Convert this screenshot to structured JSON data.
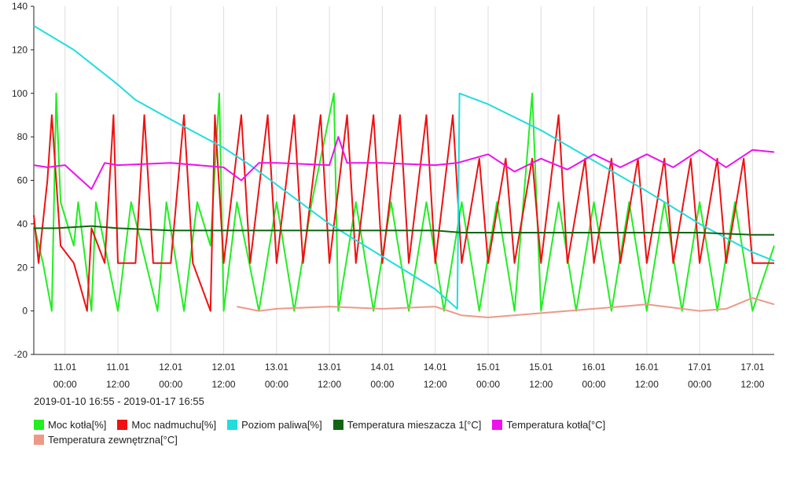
{
  "date_range": "2019-01-10 16:55 - 2019-01-17 16:55",
  "chart_data": {
    "type": "line",
    "xlabel": "",
    "ylabel": "",
    "ylim": [
      -20,
      140
    ],
    "yticks": [
      -20,
      0,
      20,
      40,
      60,
      80,
      100,
      120,
      140
    ],
    "x_range": [
      "2019-01-10 16:55",
      "2019-01-17 16:55"
    ],
    "grid": "vertical",
    "xticks": [
      {
        "x": "2019-01-11 00:00",
        "day": "11.01",
        "time": "00:00"
      },
      {
        "x": "2019-01-11 12:00",
        "day": "11.01",
        "time": "12:00"
      },
      {
        "x": "2019-01-12 00:00",
        "day": "12.01",
        "time": "00:00"
      },
      {
        "x": "2019-01-12 12:00",
        "day": "12.01",
        "time": "12:00"
      },
      {
        "x": "2019-01-13 00:00",
        "day": "13.01",
        "time": "00:00"
      },
      {
        "x": "2019-01-13 12:00",
        "day": "13.01",
        "time": "12:00"
      },
      {
        "x": "2019-01-14 00:00",
        "day": "14.01",
        "time": "00:00"
      },
      {
        "x": "2019-01-14 12:00",
        "day": "14.01",
        "time": "12:00"
      },
      {
        "x": "2019-01-15 00:00",
        "day": "15.01",
        "time": "00:00"
      },
      {
        "x": "2019-01-15 12:00",
        "day": "15.01",
        "time": "12:00"
      },
      {
        "x": "2019-01-16 00:00",
        "day": "16.01",
        "time": "00:00"
      },
      {
        "x": "2019-01-16 12:00",
        "day": "16.01",
        "time": "12:00"
      },
      {
        "x": "2019-01-17 00:00",
        "day": "17.01",
        "time": "00:00"
      },
      {
        "x": "2019-01-17 12:00",
        "day": "17.01",
        "time": "12:00"
      }
    ],
    "legend_position": "bottom-left",
    "series": [
      {
        "name": "Moc kotła[%]",
        "color": "#22ee22",
        "points": [
          [
            "2019-01-10 16:55",
            40
          ],
          [
            "2019-01-10 19:00",
            22
          ],
          [
            "2019-01-10 21:00",
            0
          ],
          [
            "2019-01-10 22:00",
            100
          ],
          [
            "2019-01-10 23:00",
            50
          ],
          [
            "2019-01-11 02:00",
            30
          ],
          [
            "2019-01-11 03:00",
            50
          ],
          [
            "2019-01-11 06:00",
            0
          ],
          [
            "2019-01-11 07:00",
            50
          ],
          [
            "2019-01-11 09:00",
            30
          ],
          [
            "2019-01-11 12:00",
            0
          ],
          [
            "2019-01-11 15:00",
            50
          ],
          [
            "2019-01-11 21:00",
            0
          ],
          [
            "2019-01-11 23:00",
            50
          ],
          [
            "2019-01-12 03:00",
            0
          ],
          [
            "2019-01-12 06:00",
            50
          ],
          [
            "2019-01-12 09:00",
            30
          ],
          [
            "2019-01-12 11:00",
            100
          ],
          [
            "2019-01-12 12:00",
            0
          ],
          [
            "2019-01-12 15:00",
            50
          ],
          [
            "2019-01-12 20:00",
            0
          ],
          [
            "2019-01-13 00:00",
            50
          ],
          [
            "2019-01-13 04:00",
            0
          ],
          [
            "2019-01-13 08:00",
            50
          ],
          [
            "2019-01-13 13:00",
            100
          ],
          [
            "2019-01-13 14:00",
            0
          ],
          [
            "2019-01-13 18:00",
            50
          ],
          [
            "2019-01-13 22:00",
            0
          ],
          [
            "2019-01-14 02:00",
            50
          ],
          [
            "2019-01-14 06:00",
            0
          ],
          [
            "2019-01-14 10:00",
            50
          ],
          [
            "2019-01-14 14:00",
            0
          ],
          [
            "2019-01-14 18:00",
            50
          ],
          [
            "2019-01-14 22:00",
            0
          ],
          [
            "2019-01-15 02:00",
            50
          ],
          [
            "2019-01-15 06:00",
            0
          ],
          [
            "2019-01-15 10:00",
            100
          ],
          [
            "2019-01-15 12:00",
            0
          ],
          [
            "2019-01-15 16:00",
            50
          ],
          [
            "2019-01-15 20:00",
            0
          ],
          [
            "2019-01-16 00:00",
            50
          ],
          [
            "2019-01-16 04:00",
            0
          ],
          [
            "2019-01-16 08:00",
            50
          ],
          [
            "2019-01-16 12:00",
            0
          ],
          [
            "2019-01-16 16:00",
            50
          ],
          [
            "2019-01-16 20:00",
            0
          ],
          [
            "2019-01-17 00:00",
            50
          ],
          [
            "2019-01-17 04:00",
            0
          ],
          [
            "2019-01-17 08:00",
            50
          ],
          [
            "2019-01-17 12:00",
            0
          ],
          [
            "2019-01-17 16:55",
            30
          ]
        ]
      },
      {
        "name": "Moc nadmuchu[%]",
        "color": "#ee1111",
        "points": [
          [
            "2019-01-10 16:55",
            44
          ],
          [
            "2019-01-10 18:00",
            22
          ],
          [
            "2019-01-10 20:00",
            60
          ],
          [
            "2019-01-10 21:00",
            90
          ],
          [
            "2019-01-10 23:00",
            30
          ],
          [
            "2019-01-11 02:00",
            22
          ],
          [
            "2019-01-11 05:00",
            0
          ],
          [
            "2019-01-11 06:00",
            38
          ],
          [
            "2019-01-11 09:00",
            22
          ],
          [
            "2019-01-11 11:00",
            90
          ],
          [
            "2019-01-11 12:00",
            22
          ],
          [
            "2019-01-11 16:00",
            22
          ],
          [
            "2019-01-11 18:00",
            90
          ],
          [
            "2019-01-11 20:00",
            22
          ],
          [
            "2019-01-12 00:00",
            22
          ],
          [
            "2019-01-12 03:00",
            90
          ],
          [
            "2019-01-12 05:00",
            22
          ],
          [
            "2019-01-12 09:00",
            0
          ],
          [
            "2019-01-12 10:00",
            90
          ],
          [
            "2019-01-12 12:00",
            22
          ],
          [
            "2019-01-12 16:00",
            90
          ],
          [
            "2019-01-12 18:00",
            22
          ],
          [
            "2019-01-12 22:00",
            90
          ],
          [
            "2019-01-13 00:00",
            22
          ],
          [
            "2019-01-13 04:00",
            90
          ],
          [
            "2019-01-13 06:00",
            22
          ],
          [
            "2019-01-13 10:00",
            90
          ],
          [
            "2019-01-13 12:00",
            22
          ],
          [
            "2019-01-13 16:00",
            90
          ],
          [
            "2019-01-13 18:00",
            22
          ],
          [
            "2019-01-13 22:00",
            90
          ],
          [
            "2019-01-14 00:00",
            22
          ],
          [
            "2019-01-14 04:00",
            90
          ],
          [
            "2019-01-14 06:00",
            22
          ],
          [
            "2019-01-14 10:00",
            90
          ],
          [
            "2019-01-14 12:00",
            22
          ],
          [
            "2019-01-14 16:00",
            90
          ],
          [
            "2019-01-14 18:00",
            22
          ],
          [
            "2019-01-14 22:00",
            70
          ],
          [
            "2019-01-15 00:00",
            22
          ],
          [
            "2019-01-15 04:00",
            70
          ],
          [
            "2019-01-15 06:00",
            22
          ],
          [
            "2019-01-15 10:00",
            70
          ],
          [
            "2019-01-15 12:00",
            22
          ],
          [
            "2019-01-15 16:00",
            90
          ],
          [
            "2019-01-15 18:00",
            22
          ],
          [
            "2019-01-15 22:00",
            70
          ],
          [
            "2019-01-16 00:00",
            22
          ],
          [
            "2019-01-16 04:00",
            70
          ],
          [
            "2019-01-16 06:00",
            22
          ],
          [
            "2019-01-16 10:00",
            70
          ],
          [
            "2019-01-16 12:00",
            22
          ],
          [
            "2019-01-16 16:00",
            70
          ],
          [
            "2019-01-16 18:00",
            22
          ],
          [
            "2019-01-16 22:00",
            70
          ],
          [
            "2019-01-17 00:00",
            22
          ],
          [
            "2019-01-17 04:00",
            70
          ],
          [
            "2019-01-17 06:00",
            22
          ],
          [
            "2019-01-17 10:00",
            70
          ],
          [
            "2019-01-17 12:00",
            22
          ],
          [
            "2019-01-17 16:55",
            22
          ]
        ]
      },
      {
        "name": "Poziom paliwa[%]",
        "color": "#22dddd",
        "points": [
          [
            "2019-01-10 16:55",
            131
          ],
          [
            "2019-01-11 02:00",
            120
          ],
          [
            "2019-01-11 12:00",
            104
          ],
          [
            "2019-01-11 16:00",
            97
          ],
          [
            "2019-01-12 00:00",
            88
          ],
          [
            "2019-01-12 12:00",
            75
          ],
          [
            "2019-01-12 18:00",
            67
          ],
          [
            "2019-01-13 00:00",
            58
          ],
          [
            "2019-01-13 12:00",
            40
          ],
          [
            "2019-01-14 00:00",
            25
          ],
          [
            "2019-01-14 12:00",
            10
          ],
          [
            "2019-01-14 17:00",
            1
          ],
          [
            "2019-01-14 17:30",
            100
          ],
          [
            "2019-01-15 00:00",
            95
          ],
          [
            "2019-01-15 12:00",
            83
          ],
          [
            "2019-01-16 00:00",
            69
          ],
          [
            "2019-01-16 12:00",
            55
          ],
          [
            "2019-01-17 00:00",
            40
          ],
          [
            "2019-01-17 12:00",
            27
          ],
          [
            "2019-01-17 16:55",
            23
          ]
        ]
      },
      {
        "name": "Temperatura mieszacza 1[°C]",
        "color": "#116611",
        "points": [
          [
            "2019-01-10 16:55",
            38
          ],
          [
            "2019-01-10 22:00",
            38
          ],
          [
            "2019-01-11 06:00",
            39
          ],
          [
            "2019-01-11 12:00",
            38
          ],
          [
            "2019-01-12 00:00",
            37
          ],
          [
            "2019-01-12 12:00",
            37
          ],
          [
            "2019-01-13 00:00",
            37
          ],
          [
            "2019-01-13 12:00",
            37
          ],
          [
            "2019-01-14 00:00",
            37
          ],
          [
            "2019-01-14 12:00",
            37
          ],
          [
            "2019-01-14 18:00",
            36
          ],
          [
            "2019-01-15 00:00",
            36
          ],
          [
            "2019-01-15 12:00",
            36
          ],
          [
            "2019-01-16 00:00",
            36
          ],
          [
            "2019-01-16 12:00",
            36
          ],
          [
            "2019-01-17 00:00",
            36
          ],
          [
            "2019-01-17 12:00",
            35
          ],
          [
            "2019-01-17 16:55",
            35
          ]
        ]
      },
      {
        "name": "Temperatura kotła[°C]",
        "color": "#ee11ee",
        "points": [
          [
            "2019-01-10 16:55",
            67
          ],
          [
            "2019-01-10 20:00",
            66
          ],
          [
            "2019-01-11 00:00",
            67
          ],
          [
            "2019-01-11 06:00",
            56
          ],
          [
            "2019-01-11 09:00",
            68
          ],
          [
            "2019-01-11 12:00",
            67
          ],
          [
            "2019-01-12 00:00",
            68
          ],
          [
            "2019-01-12 12:00",
            66
          ],
          [
            "2019-01-12 16:00",
            60
          ],
          [
            "2019-01-12 20:00",
            68
          ],
          [
            "2019-01-13 00:00",
            68
          ],
          [
            "2019-01-13 12:00",
            67
          ],
          [
            "2019-01-13 14:00",
            80
          ],
          [
            "2019-01-13 16:00",
            68
          ],
          [
            "2019-01-14 00:00",
            68
          ],
          [
            "2019-01-14 12:00",
            67
          ],
          [
            "2019-01-14 17:00",
            68
          ],
          [
            "2019-01-15 00:00",
            72
          ],
          [
            "2019-01-15 06:00",
            64
          ],
          [
            "2019-01-15 12:00",
            70
          ],
          [
            "2019-01-15 18:00",
            65
          ],
          [
            "2019-01-16 00:00",
            72
          ],
          [
            "2019-01-16 06:00",
            66
          ],
          [
            "2019-01-16 12:00",
            72
          ],
          [
            "2019-01-16 18:00",
            66
          ],
          [
            "2019-01-17 00:00",
            74
          ],
          [
            "2019-01-17 06:00",
            66
          ],
          [
            "2019-01-17 12:00",
            74
          ],
          [
            "2019-01-17 16:55",
            73
          ]
        ]
      },
      {
        "name": "Temperatura zewnętrzna[°C]",
        "color": "#ee9988",
        "points": [
          [
            "2019-01-12 15:00",
            2
          ],
          [
            "2019-01-12 20:00",
            0
          ],
          [
            "2019-01-13 00:00",
            1
          ],
          [
            "2019-01-13 12:00",
            2
          ],
          [
            "2019-01-14 00:00",
            1
          ],
          [
            "2019-01-14 12:00",
            2
          ],
          [
            "2019-01-14 18:00",
            -2
          ],
          [
            "2019-01-15 00:00",
            -3
          ],
          [
            "2019-01-15 12:00",
            -1
          ],
          [
            "2019-01-16 00:00",
            1
          ],
          [
            "2019-01-16 12:00",
            3
          ],
          [
            "2019-01-17 00:00",
            0
          ],
          [
            "2019-01-17 06:00",
            1
          ],
          [
            "2019-01-17 12:00",
            6
          ],
          [
            "2019-01-17 16:55",
            3
          ]
        ]
      }
    ]
  }
}
